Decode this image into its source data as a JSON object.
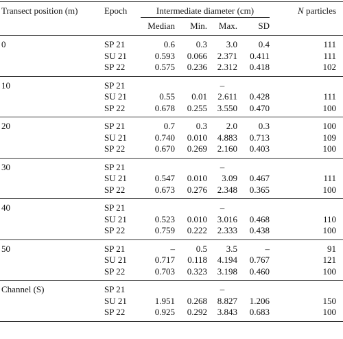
{
  "table": {
    "header": {
      "position": "Transect position (m)",
      "epoch": "Epoch",
      "diameter": "Intermediate diameter (cm)",
      "n_symbol": "N",
      "n_text": "particles",
      "subheaders": [
        "Median",
        "Min.",
        "Max.",
        "SD"
      ]
    },
    "groups": [
      {
        "position": "0",
        "rows": [
          {
            "epoch": "SP 21",
            "cells": [
              "0.6",
              "0.3",
              "3.0",
              "0.4",
              "111"
            ]
          },
          {
            "epoch": "SU 21",
            "cells": [
              "0.593",
              "0.066",
              "2.371",
              "0.411",
              "111"
            ]
          },
          {
            "epoch": "SP 22",
            "cells": [
              "0.575",
              "0.236",
              "2.312",
              "0.418",
              "102"
            ]
          }
        ]
      },
      {
        "position": "10",
        "rows": [
          {
            "epoch": "SP 21",
            "cells": [
              null,
              null,
              "–",
              null,
              null
            ]
          },
          {
            "epoch": "SU 21",
            "cells": [
              "0.55",
              "0.01",
              "2.611",
              "0.428",
              "111"
            ]
          },
          {
            "epoch": "SP 22",
            "cells": [
              "0.678",
              "0.255",
              "3.550",
              "0.470",
              "100"
            ]
          }
        ]
      },
      {
        "position": "20",
        "rows": [
          {
            "epoch": "SP 21",
            "cells": [
              "0.7",
              "0.3",
              "2.0",
              "0.3",
              "100"
            ]
          },
          {
            "epoch": "SU 21",
            "cells": [
              "0.740",
              "0.010",
              "4.883",
              "0.713",
              "109"
            ]
          },
          {
            "epoch": "SP 22",
            "cells": [
              "0.670",
              "0.269",
              "2.160",
              "0.403",
              "100"
            ]
          }
        ]
      },
      {
        "position": "30",
        "rows": [
          {
            "epoch": "SP 21",
            "cells": [
              null,
              null,
              "–",
              null,
              null
            ]
          },
          {
            "epoch": "SU 21",
            "cells": [
              "0.547",
              "0.010",
              "3.09",
              "0.467",
              "111"
            ]
          },
          {
            "epoch": "SP 22",
            "cells": [
              "0.673",
              "0.276",
              "2.348",
              "0.365",
              "100"
            ]
          }
        ]
      },
      {
        "position": "40",
        "rows": [
          {
            "epoch": "SP 21",
            "cells": [
              null,
              null,
              "–",
              null,
              null
            ]
          },
          {
            "epoch": "SU 21",
            "cells": [
              "0.523",
              "0.010",
              "3.016",
              "0.468",
              "110"
            ]
          },
          {
            "epoch": "SP 22",
            "cells": [
              "0.759",
              "0.222",
              "2.333",
              "0.438",
              "100"
            ]
          }
        ]
      },
      {
        "position": "50",
        "rows": [
          {
            "epoch": "SP 21",
            "cells": [
              "–",
              "0.5",
              "3.5",
              "–",
              "91"
            ]
          },
          {
            "epoch": "SU 21",
            "cells": [
              "0.717",
              "0.118",
              "4.194",
              "0.767",
              "121"
            ]
          },
          {
            "epoch": "SP 22",
            "cells": [
              "0.703",
              "0.323",
              "3.198",
              "0.460",
              "100"
            ]
          }
        ]
      },
      {
        "position": "Channel (S)",
        "rows": [
          {
            "epoch": "SP 21",
            "cells": [
              null,
              null,
              "–",
              null,
              null
            ]
          },
          {
            "epoch": "SU 21",
            "cells": [
              "1.951",
              "0.268",
              "8.827",
              "1.206",
              "150"
            ]
          },
          {
            "epoch": "SP 22",
            "cells": [
              "0.925",
              "0.292",
              "3.843",
              "0.683",
              "100"
            ]
          }
        ]
      }
    ]
  }
}
